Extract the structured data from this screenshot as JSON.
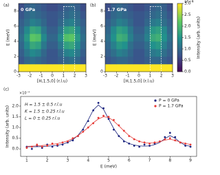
{
  "chart_data": [
    {
      "type": "heatmap",
      "panel_label": "(a)",
      "annotation": "0 GPa",
      "xlabel": "[H,1.5,0] (r.l.u)",
      "ylabel": "E (meV)",
      "x": [
        -2.75,
        -2.25,
        -1.75,
        -1.25,
        -0.75,
        -0.25,
        0.25,
        0.75,
        1.25,
        1.75,
        2.25,
        2.75
      ],
      "y": [
        0.5,
        1.5,
        2.5,
        3.5,
        4.5,
        5.5,
        6.5,
        7.5,
        8.5
      ],
      "values": [
        [
          3,
          3,
          3,
          3,
          3,
          3,
          3,
          3,
          3,
          3,
          3,
          3
        ],
        [
          0.8,
          1.0,
          1.1,
          1.0,
          0.9,
          0.8,
          0.8,
          0.9,
          1.0,
          1.1,
          1.0,
          0.8
        ],
        [
          0.9,
          1.2,
          1.4,
          1.3,
          1.0,
          0.8,
          0.8,
          1.0,
          1.3,
          1.4,
          1.2,
          0.9
        ],
        [
          1.0,
          1.4,
          1.8,
          1.7,
          1.2,
          0.9,
          0.9,
          1.2,
          1.7,
          1.8,
          1.4,
          1.0
        ],
        [
          1.1,
          1.6,
          2.2,
          2.1,
          1.4,
          1.0,
          1.0,
          1.4,
          2.1,
          2.2,
          1.6,
          1.1
        ],
        [
          1.0,
          1.4,
          1.8,
          1.7,
          1.2,
          0.9,
          0.9,
          1.2,
          1.7,
          1.8,
          1.4,
          1.0
        ],
        [
          0.9,
          1.1,
          1.3,
          1.2,
          1.0,
          0.8,
          0.8,
          1.0,
          1.2,
          1.3,
          1.1,
          0.9
        ],
        [
          0.8,
          1.0,
          1.1,
          1.0,
          0.9,
          0.8,
          0.8,
          0.9,
          1.0,
          1.1,
          1.0,
          0.8
        ],
        [
          0.7,
          0.9,
          1.0,
          0.9,
          0.8,
          0.7,
          0.7,
          0.8,
          0.9,
          1.0,
          0.9,
          0.7
        ]
      ],
      "xlim": [
        -3,
        3
      ],
      "ylim": [
        0,
        9
      ],
      "xticks": [
        -3,
        -2,
        -1,
        0,
        1,
        2,
        3
      ],
      "yticks": [
        0,
        2,
        4,
        6,
        8
      ],
      "clim": [
        0,
        3
      ],
      "colormap": "viridis",
      "highlight": {
        "x": [
          1,
          2
        ],
        "y": [
          0,
          8.6
        ]
      }
    },
    {
      "type": "heatmap",
      "panel_label": "(b)",
      "annotation": "1.7 GPa",
      "xlabel": "[H,1.5,0] (r.l.u)",
      "ylabel": "E (meV)",
      "x": [
        -2.75,
        -2.25,
        -1.75,
        -1.25,
        -0.75,
        -0.25,
        0.25,
        0.75,
        1.25,
        1.75,
        2.25,
        2.75
      ],
      "y": [
        0.5,
        1.5,
        2.5,
        3.5,
        4.5,
        5.5,
        6.5,
        7.5,
        8.5
      ],
      "values": [
        [
          3,
          3,
          3,
          3,
          3,
          3,
          3,
          3,
          3,
          3,
          3,
          3
        ],
        [
          0.8,
          0.9,
          1.0,
          1.0,
          0.9,
          0.8,
          0.8,
          0.9,
          1.0,
          1.0,
          0.9,
          0.8
        ],
        [
          0.9,
          1.1,
          1.3,
          1.2,
          1.0,
          0.8,
          0.8,
          1.0,
          1.2,
          1.3,
          1.1,
          0.9
        ],
        [
          1.0,
          1.3,
          1.6,
          1.5,
          1.1,
          0.9,
          0.9,
          1.1,
          1.5,
          1.6,
          1.3,
          1.0
        ],
        [
          1.1,
          1.5,
          1.9,
          1.8,
          1.3,
          1.0,
          1.0,
          1.3,
          1.8,
          1.9,
          1.5,
          1.1
        ],
        [
          1.0,
          1.4,
          1.7,
          1.6,
          1.2,
          0.9,
          0.9,
          1.2,
          1.6,
          1.7,
          1.4,
          1.0
        ],
        [
          0.9,
          1.1,
          1.3,
          1.2,
          1.0,
          0.8,
          0.8,
          1.0,
          1.2,
          1.3,
          1.1,
          0.9
        ],
        [
          0.8,
          1.0,
          1.1,
          1.0,
          0.9,
          0.8,
          0.8,
          0.9,
          1.0,
          1.1,
          1.0,
          0.8
        ],
        [
          0.7,
          0.9,
          1.0,
          0.9,
          0.8,
          0.7,
          0.7,
          0.8,
          0.9,
          1.0,
          0.9,
          0.7
        ]
      ],
      "xlim": [
        -3,
        3
      ],
      "ylim": [
        0,
        9
      ],
      "xticks": [
        -3,
        -2,
        -1,
        0,
        1,
        2,
        3
      ],
      "yticks": [
        0,
        2,
        4,
        6,
        8
      ],
      "clim": [
        0,
        3
      ],
      "colormap": "viridis",
      "highlight": {
        "x": [
          1,
          2
        ],
        "y": [
          0,
          8.6
        ]
      },
      "colorbar_label": "Intensity (arb. units)",
      "color_offset_label": "1e−4",
      "cticks": [
        {
          "value": 0,
          "label": "0.0"
        },
        {
          "value": 0.5,
          "label": "0.5"
        },
        {
          "value": 1,
          "label": "1.0"
        },
        {
          "value": 1.5,
          "label": "1.5"
        },
        {
          "value": 2,
          "label": "2.0"
        },
        {
          "value": 2.5,
          "label": "2.5"
        },
        {
          "value": 3,
          "label": "3.0"
        }
      ]
    },
    {
      "type": "scatter",
      "panel_label": "(c)",
      "xlabel": "E (meV)",
      "ylabel": "Intensity (arb. units)",
      "y_offset_label": "×10⁻⁴",
      "annotations": [
        "H = 1.5 ± 0.5 r.l.u",
        "K = 1.5 ± 0.25 r.l.u",
        "L = 0 ± 0.25 r.l.u"
      ],
      "x": [
        1,
        1.25,
        1.5,
        1.75,
        2,
        2.25,
        2.5,
        2.75,
        3,
        3.25,
        3.5,
        3.75,
        4,
        4.25,
        4.5,
        4.75,
        5,
        5.25,
        5.5,
        5.75,
        6,
        6.25,
        6.5,
        6.75,
        7,
        7.25,
        7.5,
        7.75,
        8,
        8.25,
        8.5,
        8.75,
        9
      ],
      "series": [
        {
          "name": "P = 0 GPa",
          "color": "#1a237e",
          "values": [
            0.1,
            0.0,
            0.15,
            0.05,
            0.2,
            0.1,
            0.15,
            0.2,
            0.3,
            0.4,
            0.6,
            0.9,
            1.3,
            1.8,
            2.15,
            1.9,
            1.4,
            0.9,
            0.6,
            0.35,
            0.25,
            0.15,
            0.1,
            0.2,
            0.15,
            0.25,
            0.35,
            0.55,
            0.75,
            0.55,
            0.3,
            0.15,
            0.1
          ],
          "fit": [
            0.1,
            0.1,
            0.1,
            0.11,
            0.12,
            0.14,
            0.17,
            0.22,
            0.3,
            0.43,
            0.63,
            0.93,
            1.35,
            1.82,
            2.05,
            1.85,
            1.4,
            0.95,
            0.6,
            0.38,
            0.25,
            0.18,
            0.14,
            0.13,
            0.14,
            0.2,
            0.3,
            0.48,
            0.62,
            0.5,
            0.3,
            0.17,
            0.12
          ]
        },
        {
          "name": "P = 1.7 GPa",
          "color": "#e53935",
          "values": [
            0.05,
            0.1,
            0.2,
            0.1,
            0.15,
            0.25,
            0.2,
            0.3,
            0.35,
            0.5,
            0.6,
            0.8,
            1.0,
            1.2,
            1.45,
            1.55,
            1.5,
            1.35,
            1.1,
            0.85,
            0.6,
            0.45,
            0.35,
            0.3,
            0.25,
            0.3,
            0.35,
            0.45,
            0.5,
            0.4,
            0.3,
            0.25,
            0.2
          ],
          "fit": [
            0.12,
            0.13,
            0.14,
            0.16,
            0.18,
            0.21,
            0.25,
            0.3,
            0.38,
            0.48,
            0.62,
            0.8,
            1.0,
            1.22,
            1.4,
            1.5,
            1.47,
            1.3,
            1.08,
            0.84,
            0.62,
            0.46,
            0.35,
            0.29,
            0.27,
            0.29,
            0.34,
            0.41,
            0.45,
            0.4,
            0.32,
            0.25,
            0.21
          ]
        }
      ],
      "xlim": [
        0.7,
        9.3
      ],
      "ylim": [
        -0.35,
        2.45
      ],
      "xticks": [
        1,
        2,
        3,
        4,
        5,
        6,
        7,
        8,
        9
      ],
      "yticks": [
        {
          "value": 0,
          "label": "0.0"
        },
        {
          "value": 0.5,
          "label": "0.5"
        },
        {
          "value": 1,
          "label": "1.0"
        },
        {
          "value": 1.5,
          "label": "1.5"
        },
        {
          "value": 2,
          "label": "2.0"
        }
      ],
      "legend": "upper right"
    }
  ]
}
